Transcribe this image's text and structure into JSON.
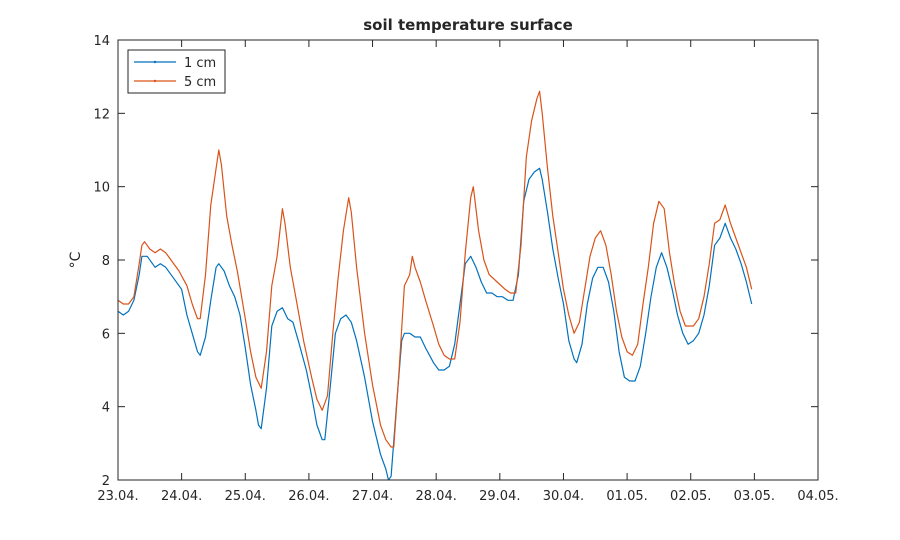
{
  "chart_data": {
    "type": "line",
    "title": "soil temperature surface",
    "xlabel": "",
    "ylabel": "°C",
    "x_axis_kind": "date",
    "x_range": [
      "2023-04-23",
      "2023-05-04"
    ],
    "y_range": [
      2,
      14
    ],
    "x_ticks": [
      {
        "label": "23.04.",
        "date": "2023-04-23"
      },
      {
        "label": "24.04.",
        "date": "2023-04-24"
      },
      {
        "label": "25.04.",
        "date": "2023-04-25"
      },
      {
        "label": "26.04.",
        "date": "2023-04-26"
      },
      {
        "label": "27.04.",
        "date": "2023-04-27"
      },
      {
        "label": "28.04.",
        "date": "2023-04-28"
      },
      {
        "label": "29.04.",
        "date": "2023-04-29"
      },
      {
        "label": "30.04.",
        "date": "2023-04-30"
      },
      {
        "label": "01.05.",
        "date": "2023-05-01"
      },
      {
        "label": "02.05.",
        "date": "2023-05-02"
      },
      {
        "label": "03.05.",
        "date": "2023-05-03"
      },
      {
        "label": "04.05.",
        "date": "2023-05-04"
      }
    ],
    "y_ticks": [
      2,
      4,
      6,
      8,
      10,
      12,
      14
    ],
    "grid": false,
    "legend_position": "top-left",
    "series": [
      {
        "name": "1 cm",
        "color": "#0072BD",
        "points": [
          [
            "2023-04-23 00:00",
            6.6
          ],
          [
            "2023-04-23 02:00",
            6.5
          ],
          [
            "2023-04-23 04:00",
            6.6
          ],
          [
            "2023-04-23 06:00",
            6.9
          ],
          [
            "2023-04-23 08:00",
            7.6
          ],
          [
            "2023-04-23 09:00",
            8.1
          ],
          [
            "2023-04-23 11:00",
            8.1
          ],
          [
            "2023-04-23 14:00",
            7.8
          ],
          [
            "2023-04-23 16:00",
            7.9
          ],
          [
            "2023-04-23 18:00",
            7.8
          ],
          [
            "2023-04-23 21:00",
            7.5
          ],
          [
            "2023-04-24 00:00",
            7.2
          ],
          [
            "2023-04-24 02:00",
            6.5
          ],
          [
            "2023-04-24 04:00",
            6.0
          ],
          [
            "2023-04-24 06:00",
            5.5
          ],
          [
            "2023-04-24 07:00",
            5.4
          ],
          [
            "2023-04-24 09:00",
            5.9
          ],
          [
            "2023-04-24 11:00",
            6.9
          ],
          [
            "2023-04-24 13:00",
            7.8
          ],
          [
            "2023-04-24 14:00",
            7.9
          ],
          [
            "2023-04-24 16:00",
            7.7
          ],
          [
            "2023-04-24 18:00",
            7.3
          ],
          [
            "2023-04-24 20:00",
            7.0
          ],
          [
            "2023-04-24 22:00",
            6.5
          ],
          [
            "2023-04-25 00:00",
            5.6
          ],
          [
            "2023-04-25 02:00",
            4.6
          ],
          [
            "2023-04-25 04:00",
            3.9
          ],
          [
            "2023-04-25 05:00",
            3.5
          ],
          [
            "2023-04-25 06:00",
            3.4
          ],
          [
            "2023-04-25 08:00",
            4.5
          ],
          [
            "2023-04-25 10:00",
            6.2
          ],
          [
            "2023-04-25 12:00",
            6.6
          ],
          [
            "2023-04-25 14:00",
            6.7
          ],
          [
            "2023-04-25 16:00",
            6.4
          ],
          [
            "2023-04-25 18:00",
            6.3
          ],
          [
            "2023-04-25 20:00",
            5.8
          ],
          [
            "2023-04-25 23:00",
            5.0
          ],
          [
            "2023-04-26 01:00",
            4.3
          ],
          [
            "2023-04-26 03:00",
            3.5
          ],
          [
            "2023-04-26 05:00",
            3.1
          ],
          [
            "2023-04-26 06:00",
            3.1
          ],
          [
            "2023-04-26 08:00",
            4.5
          ],
          [
            "2023-04-26 10:00",
            6.0
          ],
          [
            "2023-04-26 12:00",
            6.4
          ],
          [
            "2023-04-26 14:00",
            6.5
          ],
          [
            "2023-04-26 16:00",
            6.3
          ],
          [
            "2023-04-26 18:00",
            5.8
          ],
          [
            "2023-04-26 21:00",
            4.8
          ],
          [
            "2023-04-27 00:00",
            3.6
          ],
          [
            "2023-04-27 03:00",
            2.7
          ],
          [
            "2023-04-27 05:00",
            2.3
          ],
          [
            "2023-04-27 06:00",
            2.0
          ],
          [
            "2023-04-27 07:00",
            2.1
          ],
          [
            "2023-04-27 09:00",
            4.0
          ],
          [
            "2023-04-27 11:00",
            5.8
          ],
          [
            "2023-04-27 12:00",
            6.0
          ],
          [
            "2023-04-27 14:00",
            6.0
          ],
          [
            "2023-04-27 16:00",
            5.9
          ],
          [
            "2023-04-27 18:00",
            5.9
          ],
          [
            "2023-04-27 20:00",
            5.6
          ],
          [
            "2023-04-27 23:00",
            5.2
          ],
          [
            "2023-04-28 01:00",
            5.0
          ],
          [
            "2023-04-28 03:00",
            5.0
          ],
          [
            "2023-04-28 05:00",
            5.1
          ],
          [
            "2023-04-28 07:00",
            5.7
          ],
          [
            "2023-04-28 09:00",
            6.8
          ],
          [
            "2023-04-28 11:00",
            7.9
          ],
          [
            "2023-04-28 13:00",
            8.1
          ],
          [
            "2023-04-28 15:00",
            7.8
          ],
          [
            "2023-04-28 17:00",
            7.4
          ],
          [
            "2023-04-28 19:00",
            7.1
          ],
          [
            "2023-04-28 21:00",
            7.1
          ],
          [
            "2023-04-28 23:00",
            7.0
          ],
          [
            "2023-04-29 01:00",
            7.0
          ],
          [
            "2023-04-29 03:00",
            6.9
          ],
          [
            "2023-04-29 05:00",
            6.9
          ],
          [
            "2023-04-29 07:00",
            7.6
          ],
          [
            "2023-04-29 09:00",
            9.6
          ],
          [
            "2023-04-29 11:00",
            10.2
          ],
          [
            "2023-04-29 13:00",
            10.4
          ],
          [
            "2023-04-29 15:00",
            10.5
          ],
          [
            "2023-04-29 16:00",
            10.2
          ],
          [
            "2023-04-29 18:00",
            9.3
          ],
          [
            "2023-04-29 20:00",
            8.3
          ],
          [
            "2023-04-29 22:00",
            7.5
          ],
          [
            "2023-04-30 00:00",
            6.8
          ],
          [
            "2023-04-30 02:00",
            5.8
          ],
          [
            "2023-04-30 04:00",
            5.3
          ],
          [
            "2023-04-30 05:00",
            5.2
          ],
          [
            "2023-04-30 07:00",
            5.7
          ],
          [
            "2023-04-30 09:00",
            6.8
          ],
          [
            "2023-04-30 11:00",
            7.5
          ],
          [
            "2023-04-30 13:00",
            7.8
          ],
          [
            "2023-04-30 15:00",
            7.8
          ],
          [
            "2023-04-30 17:00",
            7.4
          ],
          [
            "2023-04-30 19:00",
            6.6
          ],
          [
            "2023-04-30 21:00",
            5.5
          ],
          [
            "2023-04-30 23:00",
            4.8
          ],
          [
            "2023-05-01 01:00",
            4.7
          ],
          [
            "2023-05-01 03:00",
            4.7
          ],
          [
            "2023-05-01 05:00",
            5.1
          ],
          [
            "2023-05-01 07:00",
            6.0
          ],
          [
            "2023-05-01 09:00",
            7.0
          ],
          [
            "2023-05-01 11:00",
            7.8
          ],
          [
            "2023-05-01 13:00",
            8.2
          ],
          [
            "2023-05-01 15:00",
            7.8
          ],
          [
            "2023-05-01 17:00",
            7.2
          ],
          [
            "2023-05-01 19:00",
            6.5
          ],
          [
            "2023-05-01 21:00",
            6.0
          ],
          [
            "2023-05-01 23:00",
            5.7
          ],
          [
            "2023-05-02 01:00",
            5.8
          ],
          [
            "2023-05-02 03:00",
            6.0
          ],
          [
            "2023-05-02 05:00",
            6.5
          ],
          [
            "2023-05-02 07:00",
            7.3
          ],
          [
            "2023-05-02 09:00",
            8.4
          ],
          [
            "2023-05-02 11:00",
            8.6
          ],
          [
            "2023-05-02 13:00",
            9.0
          ],
          [
            "2023-05-02 15:00",
            8.6
          ],
          [
            "2023-05-02 17:00",
            8.3
          ],
          [
            "2023-05-02 19:00",
            7.9
          ],
          [
            "2023-05-02 21:00",
            7.4
          ],
          [
            "2023-05-02 23:00",
            6.8
          ]
        ]
      },
      {
        "name": "5 cm",
        "color": "#D95319",
        "points": [
          [
            "2023-04-23 00:00",
            6.9
          ],
          [
            "2023-04-23 02:00",
            6.8
          ],
          [
            "2023-04-23 04:00",
            6.8
          ],
          [
            "2023-04-23 06:00",
            7.0
          ],
          [
            "2023-04-23 08:00",
            7.9
          ],
          [
            "2023-04-23 09:00",
            8.4
          ],
          [
            "2023-04-23 10:00",
            8.5
          ],
          [
            "2023-04-23 12:00",
            8.3
          ],
          [
            "2023-04-23 14:00",
            8.2
          ],
          [
            "2023-04-23 16:00",
            8.3
          ],
          [
            "2023-04-23 18:00",
            8.2
          ],
          [
            "2023-04-23 20:00",
            8.0
          ],
          [
            "2023-04-23 23:00",
            7.7
          ],
          [
            "2023-04-24 02:00",
            7.3
          ],
          [
            "2023-04-24 04:00",
            6.8
          ],
          [
            "2023-04-24 06:00",
            6.4
          ],
          [
            "2023-04-24 07:00",
            6.4
          ],
          [
            "2023-04-24 09:00",
            7.6
          ],
          [
            "2023-04-24 11:00",
            9.5
          ],
          [
            "2023-04-24 13:00",
            10.5
          ],
          [
            "2023-04-24 14:00",
            11.0
          ],
          [
            "2023-04-24 15:00",
            10.6
          ],
          [
            "2023-04-24 17:00",
            9.2
          ],
          [
            "2023-04-24 19:00",
            8.4
          ],
          [
            "2023-04-24 21:00",
            7.7
          ],
          [
            "2023-04-25 00:00",
            6.4
          ],
          [
            "2023-04-25 02:00",
            5.5
          ],
          [
            "2023-04-25 04:00",
            4.8
          ],
          [
            "2023-04-25 06:00",
            4.5
          ],
          [
            "2023-04-25 08:00",
            5.5
          ],
          [
            "2023-04-25 10:00",
            7.3
          ],
          [
            "2023-04-25 12:00",
            8.1
          ],
          [
            "2023-04-25 14:00",
            9.4
          ],
          [
            "2023-04-25 15:00",
            9.0
          ],
          [
            "2023-04-25 17:00",
            7.8
          ],
          [
            "2023-04-25 19:00",
            7.0
          ],
          [
            "2023-04-25 22:00",
            5.8
          ],
          [
            "2023-04-26 01:00",
            4.8
          ],
          [
            "2023-04-26 03:00",
            4.2
          ],
          [
            "2023-04-26 05:00",
            3.9
          ],
          [
            "2023-04-26 07:00",
            4.3
          ],
          [
            "2023-04-26 09:00",
            6.0
          ],
          [
            "2023-04-26 11:00",
            7.5
          ],
          [
            "2023-04-26 13:00",
            8.8
          ],
          [
            "2023-04-26 15:00",
            9.7
          ],
          [
            "2023-04-26 16:00",
            9.3
          ],
          [
            "2023-04-26 18:00",
            7.8
          ],
          [
            "2023-04-26 21:00",
            6.0
          ],
          [
            "2023-04-27 00:00",
            4.6
          ],
          [
            "2023-04-27 03:00",
            3.5
          ],
          [
            "2023-04-27 05:00",
            3.1
          ],
          [
            "2023-04-27 07:00",
            2.9
          ],
          [
            "2023-04-27 08:00",
            2.9
          ],
          [
            "2023-04-27 10:00",
            5.0
          ],
          [
            "2023-04-27 12:00",
            7.3
          ],
          [
            "2023-04-27 14:00",
            7.6
          ],
          [
            "2023-04-27 15:00",
            8.1
          ],
          [
            "2023-04-27 16:00",
            7.8
          ],
          [
            "2023-04-27 18:00",
            7.4
          ],
          [
            "2023-04-27 20:00",
            6.9
          ],
          [
            "2023-04-27 23:00",
            6.2
          ],
          [
            "2023-04-28 01:00",
            5.7
          ],
          [
            "2023-04-28 03:00",
            5.4
          ],
          [
            "2023-04-28 05:00",
            5.3
          ],
          [
            "2023-04-28 07:00",
            5.3
          ],
          [
            "2023-04-28 09:00",
            6.3
          ],
          [
            "2023-04-28 11:00",
            8.2
          ],
          [
            "2023-04-28 13:00",
            9.7
          ],
          [
            "2023-04-28 14:00",
            10.0
          ],
          [
            "2023-04-28 16:00",
            8.8
          ],
          [
            "2023-04-28 18:00",
            8.0
          ],
          [
            "2023-04-28 20:00",
            7.6
          ],
          [
            "2023-04-28 23:00",
            7.4
          ],
          [
            "2023-04-29 02:00",
            7.2
          ],
          [
            "2023-04-29 04:00",
            7.1
          ],
          [
            "2023-04-29 06:00",
            7.1
          ],
          [
            "2023-04-29 08:00",
            8.4
          ],
          [
            "2023-04-29 10:00",
            10.8
          ],
          [
            "2023-04-29 12:00",
            11.8
          ],
          [
            "2023-04-29 14:00",
            12.4
          ],
          [
            "2023-04-29 15:00",
            12.6
          ],
          [
            "2023-04-29 16:00",
            12.0
          ],
          [
            "2023-04-29 18:00",
            10.5
          ],
          [
            "2023-04-29 20:00",
            9.2
          ],
          [
            "2023-04-29 22:00",
            8.2
          ],
          [
            "2023-04-30 00:00",
            7.2
          ],
          [
            "2023-04-30 02:00",
            6.5
          ],
          [
            "2023-04-30 04:00",
            6.0
          ],
          [
            "2023-04-30 06:00",
            6.3
          ],
          [
            "2023-04-30 08:00",
            7.2
          ],
          [
            "2023-04-30 10:00",
            8.1
          ],
          [
            "2023-04-30 12:00",
            8.6
          ],
          [
            "2023-04-30 14:00",
            8.8
          ],
          [
            "2023-04-30 16:00",
            8.4
          ],
          [
            "2023-04-30 18:00",
            7.6
          ],
          [
            "2023-04-30 20:00",
            6.6
          ],
          [
            "2023-04-30 22:00",
            5.9
          ],
          [
            "2023-05-01 00:00",
            5.5
          ],
          [
            "2023-05-01 02:00",
            5.4
          ],
          [
            "2023-05-01 04:00",
            5.7
          ],
          [
            "2023-05-01 06:00",
            6.8
          ],
          [
            "2023-05-01 08:00",
            7.8
          ],
          [
            "2023-05-01 10:00",
            9.0
          ],
          [
            "2023-05-01 12:00",
            9.6
          ],
          [
            "2023-05-01 14:00",
            9.4
          ],
          [
            "2023-05-01 16:00",
            8.2
          ],
          [
            "2023-05-01 18:00",
            7.3
          ],
          [
            "2023-05-01 20:00",
            6.6
          ],
          [
            "2023-05-01 22:00",
            6.2
          ],
          [
            "2023-05-02 01:00",
            6.2
          ],
          [
            "2023-05-02 03:00",
            6.4
          ],
          [
            "2023-05-02 05:00",
            7.0
          ],
          [
            "2023-05-02 07:00",
            7.9
          ],
          [
            "2023-05-02 09:00",
            9.0
          ],
          [
            "2023-05-02 11:00",
            9.1
          ],
          [
            "2023-05-02 13:00",
            9.5
          ],
          [
            "2023-05-02 15:00",
            9.0
          ],
          [
            "2023-05-02 17:00",
            8.6
          ],
          [
            "2023-05-02 19:00",
            8.2
          ],
          [
            "2023-05-02 21:00",
            7.8
          ],
          [
            "2023-05-02 23:00",
            7.2
          ]
        ]
      }
    ]
  }
}
